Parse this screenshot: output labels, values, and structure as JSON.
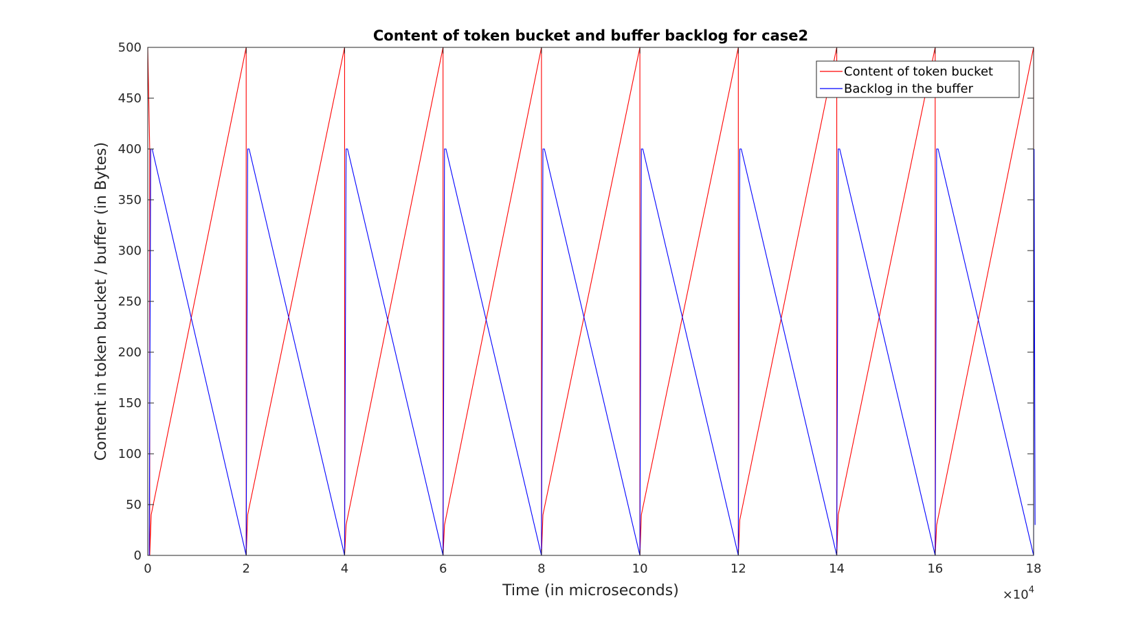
{
  "chart_data": {
    "type": "line",
    "title": "Content of token bucket and buffer backlog for case2",
    "xlabel": "Time (in microseconds)",
    "ylabel": "Content in token bucket / buffer (in Bytes)",
    "x_exponent_label": "×10",
    "x_exponent_power": "4",
    "xlim": [
      0,
      180000
    ],
    "ylim": [
      0,
      500
    ],
    "x_ticks": [
      0,
      20000,
      40000,
      60000,
      80000,
      100000,
      120000,
      140000,
      160000,
      180000
    ],
    "x_tick_labels": [
      "0",
      "2",
      "4",
      "6",
      "8",
      "10",
      "12",
      "14",
      "16",
      "18"
    ],
    "y_ticks": [
      0,
      50,
      100,
      150,
      200,
      250,
      300,
      350,
      400,
      450,
      500
    ],
    "y_tick_labels": [
      "0",
      "50",
      "100",
      "150",
      "200",
      "250",
      "300",
      "350",
      "400",
      "450",
      "500"
    ],
    "grid": false,
    "legend_position": "top-right",
    "series": [
      {
        "name": "Content of token bucket",
        "color": "#ff0000",
        "x": [
          0,
          400,
          400,
          700,
          20000,
          20000,
          20300,
          40000,
          40000,
          40300,
          60000,
          60000,
          60300,
          80000,
          80000,
          80300,
          100000,
          100000,
          100300,
          120000,
          120000,
          120300,
          140000,
          140000,
          140300,
          160000,
          160000,
          160300,
          180000,
          180000
        ],
        "y": [
          500,
          400,
          0,
          40,
          500,
          0,
          40,
          500,
          0,
          30,
          500,
          0,
          30,
          500,
          0,
          40,
          500,
          0,
          40,
          500,
          0,
          35,
          500,
          0,
          40,
          500,
          0,
          30,
          500,
          400
        ]
      },
      {
        "name": "Backlog in the buffer",
        "color": "#0000ff",
        "x": [
          0,
          300,
          600,
          900,
          20000,
          20300,
          20600,
          40000,
          40300,
          40600,
          60000,
          60300,
          60600,
          80000,
          80300,
          80600,
          100000,
          100300,
          100600,
          120000,
          120300,
          120600,
          140000,
          140300,
          140600,
          160000,
          160300,
          160600,
          180000,
          180100,
          180300
        ],
        "y": [
          0,
          0,
          400,
          400,
          0,
          400,
          400,
          0,
          400,
          400,
          0,
          400,
          400,
          0,
          400,
          400,
          0,
          400,
          400,
          0,
          400,
          400,
          0,
          400,
          400,
          0,
          400,
          400,
          0,
          400,
          30
        ]
      }
    ]
  }
}
